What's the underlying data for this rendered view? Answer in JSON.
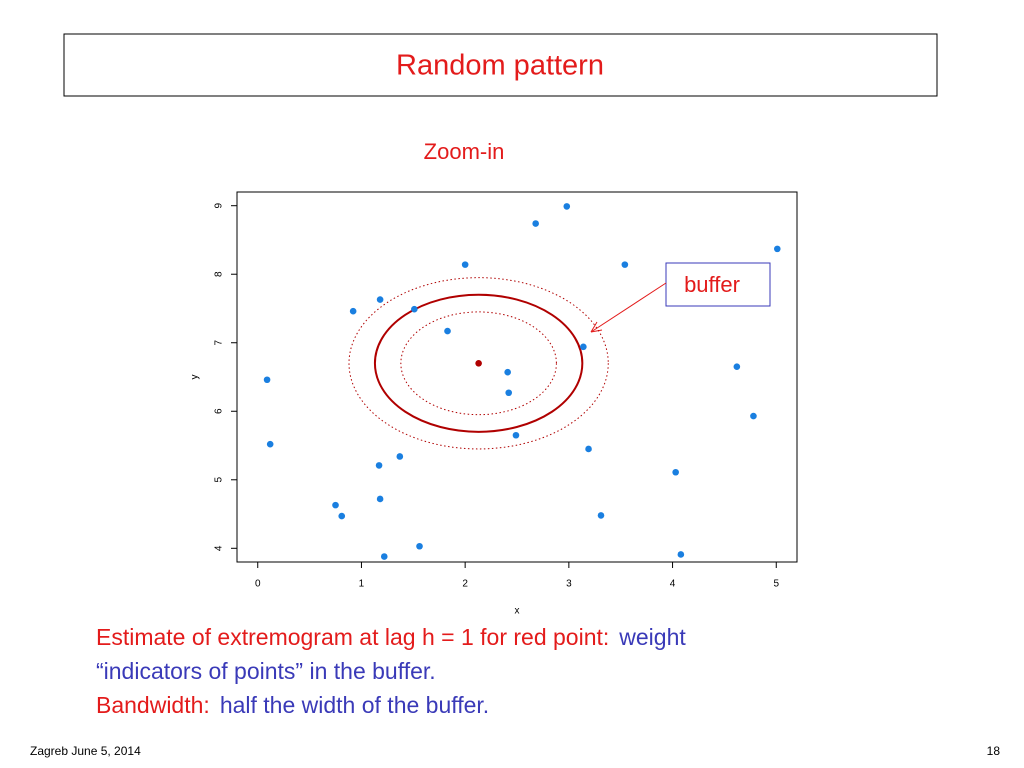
{
  "slide": {
    "title": "Random pattern",
    "body": [
      [
        {
          "text": "Estimate of extremogram at lag h = 1 for red point:",
          "color": "#e31b1b"
        },
        {
          "text": "weight",
          "color": "#3a3ab8"
        }
      ],
      [
        {
          "text": "“indicators of points” in the buffer.",
          "color": "#3a3ab8"
        }
      ],
      [
        {
          "text": "Bandwidth:",
          "color": "#e31b1b"
        },
        {
          "text": "half the width of the buffer.",
          "color": "#3a3ab8"
        }
      ]
    ],
    "footer": "Zagreb June 5, 2014",
    "page_number": "18"
  },
  "chart_data": {
    "type": "scatter",
    "title": "Zoom-in",
    "xlabel": "x",
    "ylabel": "y",
    "xlim": [
      -0.2,
      5.2
    ],
    "ylim": [
      3.8,
      9.2
    ],
    "xticks": [
      0,
      1,
      2,
      3,
      4,
      5
    ],
    "yticks": [
      4,
      5,
      6,
      7,
      8,
      9
    ],
    "series": [
      {
        "color": "#1a7fe0",
        "x": [
          0.09,
          0.12,
          0.75,
          0.81,
          0.92,
          1.18,
          1.17,
          1.18,
          1.22,
          1.37,
          1.51,
          1.56,
          1.83,
          2.0,
          2.41,
          2.42,
          2.49,
          2.68,
          2.98,
          3.14,
          3.54,
          3.19,
          3.31,
          4.03,
          4.08,
          4.62,
          4.78,
          5.01
        ],
        "values": [
          6.46,
          5.52,
          4.63,
          4.47,
          7.46,
          7.63,
          5.21,
          4.72,
          3.88,
          5.34,
          7.49,
          4.03,
          7.17,
          8.14,
          6.57,
          6.27,
          5.65,
          8.74,
          8.99,
          6.94,
          8.14,
          5.45,
          4.48,
          5.11,
          3.91,
          6.65,
          5.93,
          8.37
        ]
      }
    ],
    "highlight": {
      "x": 2.13,
      "y": 6.7,
      "color": "#b00000"
    },
    "buffers": [
      {
        "r": 0.75,
        "dotted": true
      },
      {
        "r": 1,
        "dotted": false
      },
      {
        "r": 1.25,
        "dotted": true
      }
    ],
    "buffer_color": "#b00000",
    "annotation": {
      "text": "buffer",
      "color": "#e31b1b"
    }
  }
}
